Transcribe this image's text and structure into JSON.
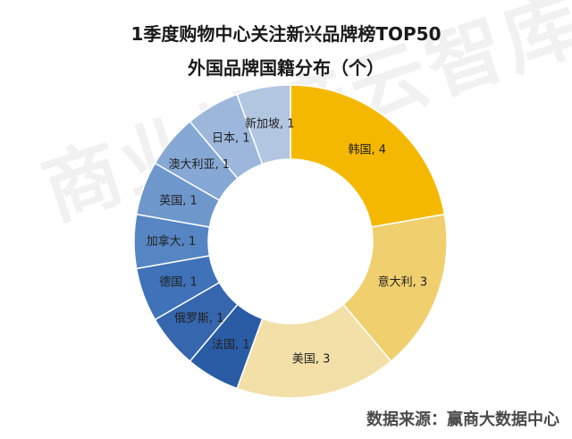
{
  "title": "1季度购物中心关注新兴品牌榜TOP50",
  "subtitle": "外国品牌国籍分布（个）",
  "watermark": "商业地产云智库",
  "source": "数据来源：赢商大数据中心",
  "chart_data": {
    "type": "pie",
    "donut": true,
    "categories": [
      "韩国",
      "意大利",
      "美国",
      "法国",
      "俄罗斯",
      "德国",
      "加拿大",
      "英国",
      "澳大利亚",
      "日本",
      "新加坡"
    ],
    "values": [
      4,
      3,
      3,
      1,
      1,
      1,
      1,
      1,
      1,
      1,
      1
    ],
    "labels": [
      "韩国, 4",
      "意大利, 3",
      "美国, 3",
      "法国, 1",
      "俄罗斯, 1",
      "德国, 1",
      "加拿大, 1",
      "英国, 1",
      "澳大利亚, 1",
      "日本, 1",
      "新加坡, 1"
    ],
    "colors": [
      "#F5B800",
      "#F0CF6E",
      "#F3E0A8",
      "#2A5CA6",
      "#3566AE",
      "#3F72B8",
      "#5685C3",
      "#6E97CC",
      "#86A8D4",
      "#9CB7DB",
      "#B2C6E1"
    ]
  }
}
